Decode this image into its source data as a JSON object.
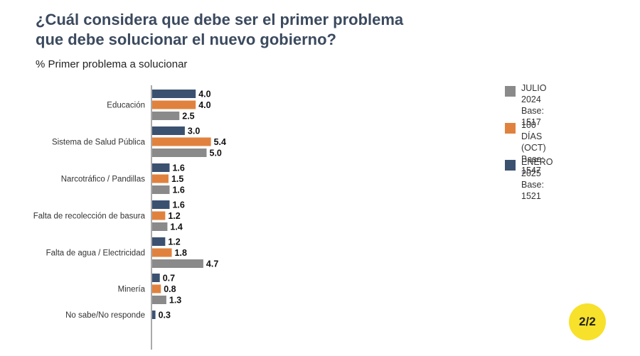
{
  "header": {
    "title_line1": "¿Cuál considera que debe ser el primer problema",
    "title_line2": "que debe solucionar el nuevo gobierno?",
    "subtitle": "% Primer problema a solucionar"
  },
  "legend": [
    {
      "name": "JULIO 2024",
      "base": "Base: 1517",
      "color": "#8a8a8a"
    },
    {
      "name": "100 DÍAS (OCT)",
      "base": "Base: 1547",
      "color": "#e0823e"
    },
    {
      "name": "ENERO 2025",
      "base": "Base: 1521",
      "color": "#3b5170"
    }
  ],
  "page_badge": "2/2",
  "chart_data": {
    "type": "bar",
    "orientation": "horizontal",
    "categories": [
      "Educación",
      "Sistema de Salud Pública",
      "Narcotráfico / Pandillas",
      "Falta de recolección de basura",
      "Falta de agua / Electricidad",
      "Minería",
      "No sabe/No responde"
    ],
    "series": [
      {
        "name": "ENERO 2025",
        "color": "#3b5170",
        "values": [
          4.0,
          3.0,
          1.6,
          1.6,
          1.2,
          0.7,
          0.3
        ]
      },
      {
        "name": "100 DÍAS (OCT)",
        "color": "#e0823e",
        "values": [
          4.0,
          5.4,
          1.5,
          1.2,
          1.8,
          0.8,
          null
        ]
      },
      {
        "name": "JULIO 2024",
        "color": "#8a8a8a",
        "values": [
          2.5,
          5.0,
          1.6,
          1.4,
          4.7,
          1.3,
          null
        ]
      }
    ],
    "value_labels": [
      [
        "4.0",
        "3.0",
        "1.6",
        "1.6",
        "1.2",
        "0.7",
        "0.3"
      ],
      [
        "4.0",
        "5.4",
        "1.5",
        "1.2",
        "1.8",
        "0.8",
        ""
      ],
      [
        "2.5",
        "5.0",
        "1.6",
        "1.4",
        "4.7",
        "1.3",
        ""
      ]
    ],
    "grid": false,
    "legend_position": "right"
  }
}
